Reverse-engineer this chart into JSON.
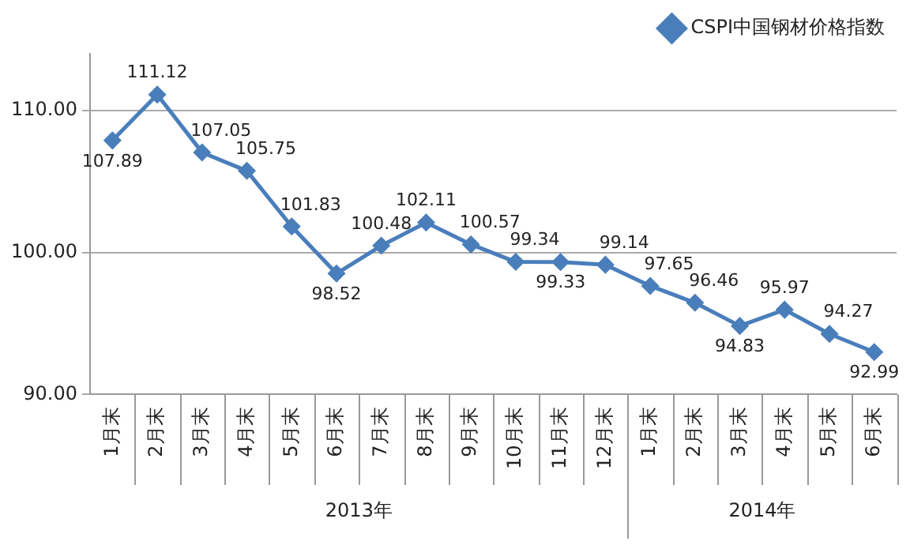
{
  "chart_data": {
    "type": "line",
    "categories": [
      "1月末",
      "2月末",
      "3月末",
      "4月末",
      "5月末",
      "6月末",
      "7月末",
      "8月末",
      "9月末",
      "10月末",
      "11月末",
      "12月末",
      "1月末",
      "2月末",
      "3月末",
      "4月末",
      "5月末",
      "6月末"
    ],
    "series": [
      {
        "name": "CSPI中国钢材价格指数",
        "color": "#4a7ebb",
        "values": [
          107.89,
          111.12,
          107.05,
          105.75,
          101.83,
          98.52,
          100.48,
          102.11,
          100.57,
          99.34,
          99.33,
          99.14,
          97.65,
          96.46,
          94.83,
          95.97,
          94.27,
          92.99
        ]
      }
    ],
    "annotations": [
      "2013年",
      "2014年"
    ],
    "ylim": [
      90,
      114
    ],
    "yticks": [
      {
        "value": 90,
        "label": "90.00"
      },
      {
        "value": 100,
        "label": "100.00"
      },
      {
        "value": 110,
        "label": "110.00"
      }
    ],
    "grid": "y",
    "legend": "top right",
    "marker": "diamond",
    "line_style": "solid",
    "data_labels": true
  }
}
